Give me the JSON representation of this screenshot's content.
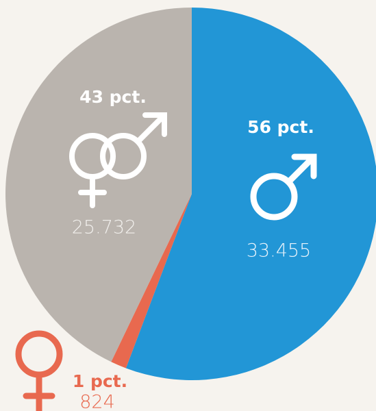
{
  "chart_data": {
    "type": "pie",
    "categories": [
      "male",
      "female",
      "both"
    ],
    "values": [
      33455,
      824,
      25732
    ],
    "value_labels": [
      "33.455",
      "824",
      "25.732"
    ],
    "percent_values": [
      56,
      1,
      43
    ],
    "percent_labels": [
      "56 pct.",
      "1 pct.",
      "43 pct."
    ],
    "colors": [
      "#2296d6",
      "#e8694f",
      "#bab4ae"
    ]
  }
}
